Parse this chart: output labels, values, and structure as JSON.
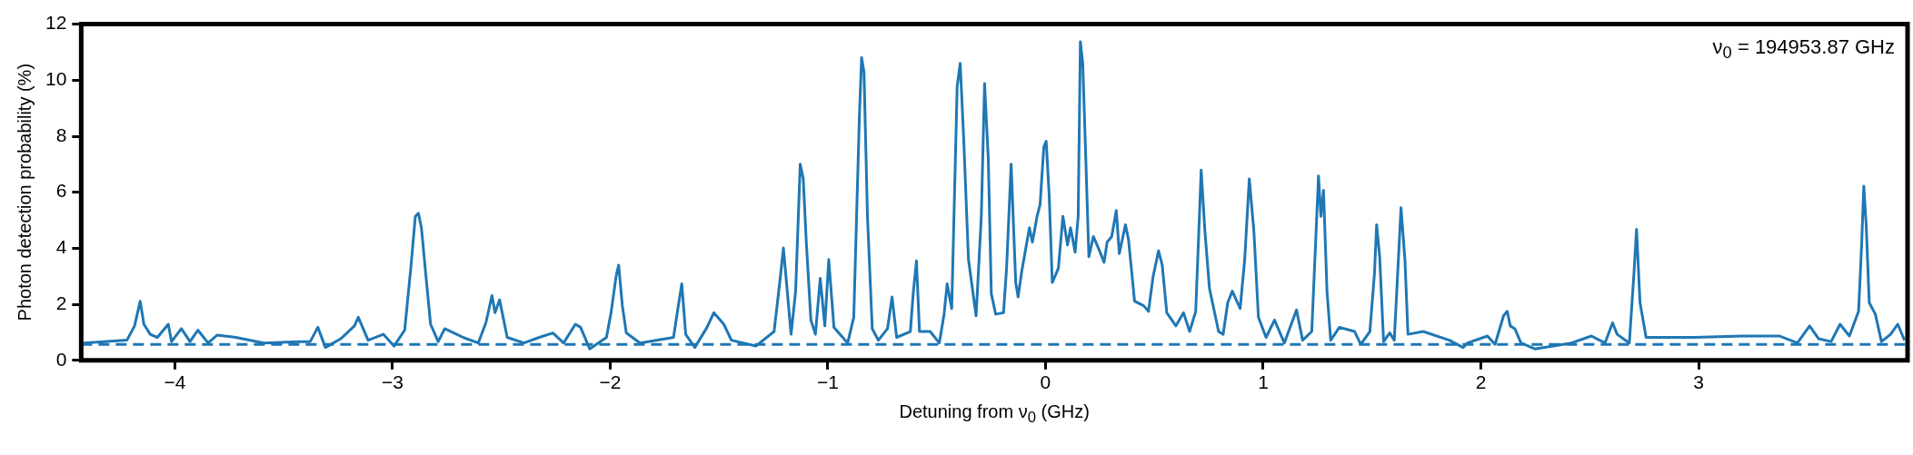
{
  "chart_data": {
    "type": "line",
    "xlabel": "Detuning from ν$_{0}$ (GHz)",
    "ylabel": "Photon detection probability (%)",
    "annotations": [
      "ν$_{0}$ = 194953.87 GHz"
    ],
    "xlim": [
      -4.43,
      3.96
    ],
    "ylim": [
      0,
      12
    ],
    "xticks": [
      {
        "value": -4,
        "label": "−4"
      },
      {
        "value": -3,
        "label": "−3"
      },
      {
        "value": -2,
        "label": "−2"
      },
      {
        "value": -1,
        "label": "−1"
      },
      0,
      1,
      2,
      3
    ],
    "yticks": [
      0,
      2,
      4,
      6,
      8,
      10,
      12
    ],
    "marker": "none",
    "line_style": "solid",
    "legend": false,
    "ref_lines": [
      {
        "axis": "y",
        "value": 0.57,
        "color": "#1f77b4",
        "line_style": "dashed"
      }
    ],
    "series": [
      {
        "color": "#1f77b4",
        "x": [
          -4.42,
          -4.22,
          -4.185,
          -4.159,
          -4.142,
          -4.113,
          -4.08,
          -4.03,
          -4.015,
          -3.97,
          -3.93,
          -3.894,
          -3.847,
          -3.806,
          -3.72,
          -3.59,
          -3.434,
          -3.378,
          -3.343,
          -3.308,
          -3.238,
          -3.175,
          -3.157,
          -3.112,
          -3.042,
          -2.993,
          -2.944,
          -2.916,
          -2.895,
          -2.881,
          -2.867,
          -2.846,
          -2.825,
          -2.79,
          -2.76,
          -2.676,
          -2.606,
          -2.571,
          -2.543,
          -2.529,
          -2.508,
          -2.473,
          -2.396,
          -2.326,
          -2.263,
          -2.214,
          -2.16,
          -2.136,
          -2.094,
          -2.017,
          -1.996,
          -1.972,
          -1.961,
          -1.944,
          -1.926,
          -1.863,
          -1.709,
          -1.688,
          -1.671,
          -1.653,
          -1.611,
          -1.555,
          -1.524,
          -1.478,
          -1.443,
          -1.331,
          -1.247,
          -1.221,
          -1.204,
          -1.169,
          -1.148,
          -1.127,
          -1.113,
          -1.099,
          -1.078,
          -1.057,
          -1.035,
          -1.014,
          -0.996,
          -0.972,
          -0.909,
          -0.881,
          -0.855,
          -0.845,
          -0.834,
          -0.818,
          -0.796,
          -0.768,
          -0.726,
          -0.705,
          -0.684,
          -0.621,
          -0.607,
          -0.593,
          -0.579,
          -0.53,
          -0.488,
          -0.466,
          -0.452,
          -0.431,
          -0.406,
          -0.392,
          -0.376,
          -0.354,
          -0.319,
          -0.295,
          -0.28,
          -0.263,
          -0.249,
          -0.229,
          -0.193,
          -0.179,
          -0.158,
          -0.137,
          -0.126,
          -0.109,
          -0.088,
          -0.074,
          -0.06,
          -0.039,
          -0.025,
          -0.008,
          0.003,
          0.017,
          0.031,
          0.059,
          0.08,
          0.101,
          0.115,
          0.136,
          0.15,
          0.16,
          0.171,
          0.185,
          0.199,
          0.22,
          0.248,
          0.269,
          0.283,
          0.304,
          0.325,
          0.339,
          0.367,
          0.381,
          0.402,
          0.409,
          0.451,
          0.473,
          0.494,
          0.519,
          0.536,
          0.557,
          0.599,
          0.634,
          0.662,
          0.69,
          0.715,
          0.732,
          0.753,
          0.795,
          0.816,
          0.837,
          0.858,
          0.894,
          0.915,
          0.936,
          0.957,
          0.978,
          1.013,
          1.052,
          1.097,
          1.153,
          1.181,
          1.223,
          1.254,
          1.265,
          1.277,
          1.293,
          1.31,
          1.35,
          1.42,
          1.448,
          1.49,
          1.511,
          1.521,
          1.535,
          1.553,
          1.581,
          1.602,
          1.623,
          1.633,
          1.651,
          1.665,
          1.735,
          1.855,
          1.918,
          1.939,
          2.03,
          2.065,
          2.104,
          2.121,
          2.135,
          2.156,
          2.184,
          2.248,
          2.416,
          2.508,
          2.57,
          2.605,
          2.626,
          2.682,
          2.703,
          2.715,
          2.731,
          2.759,
          2.977,
          3.202,
          3.37,
          3.454,
          3.51,
          3.552,
          3.609,
          3.65,
          3.693,
          3.735,
          3.749,
          3.759,
          3.77,
          3.784,
          3.812,
          3.84,
          3.882,
          3.915,
          3.946
        ],
        "values": [
          0.62,
          0.72,
          1.23,
          2.11,
          1.29,
          0.93,
          0.82,
          1.29,
          0.67,
          1.13,
          0.67,
          1.08,
          0.62,
          0.9,
          0.82,
          0.62,
          0.67,
          0.67,
          1.18,
          0.46,
          0.77,
          1.23,
          1.54,
          0.72,
          0.93,
          0.51,
          1.08,
          3.29,
          5.14,
          5.25,
          4.73,
          2.98,
          1.29,
          0.67,
          1.13,
          0.82,
          0.62,
          1.34,
          2.31,
          1.7,
          2.16,
          0.82,
          0.62,
          0.82,
          0.98,
          0.62,
          1.29,
          1.18,
          0.41,
          0.82,
          1.7,
          3.03,
          3.4,
          1.95,
          0.98,
          0.62,
          0.82,
          1.9,
          2.73,
          0.93,
          0.46,
          1.18,
          1.7,
          1.29,
          0.72,
          0.51,
          1.03,
          2.78,
          4.01,
          0.93,
          2.47,
          7.0,
          6.48,
          4.22,
          1.44,
          0.93,
          2.93,
          1.23,
          3.6,
          1.18,
          0.62,
          1.54,
          8.74,
          10.8,
          10.29,
          5.14,
          1.13,
          0.72,
          1.13,
          2.26,
          0.82,
          1.03,
          2.47,
          3.55,
          1.03,
          1.03,
          0.62,
          1.65,
          2.73,
          1.85,
          9.77,
          10.6,
          7.92,
          3.6,
          1.59,
          5.14,
          9.88,
          7.2,
          2.37,
          1.65,
          1.7,
          3.29,
          7.0,
          2.78,
          2.26,
          3.19,
          4.12,
          4.73,
          4.22,
          5.14,
          5.56,
          7.61,
          7.82,
          5.86,
          2.78,
          3.29,
          5.14,
          4.12,
          4.73,
          3.86,
          5.14,
          11.37,
          10.6,
          7.2,
          3.7,
          4.42,
          3.91,
          3.5,
          4.22,
          4.42,
          5.35,
          3.81,
          4.84,
          4.32,
          2.67,
          2.11,
          1.95,
          1.75,
          2.98,
          3.91,
          3.4,
          1.7,
          1.23,
          1.7,
          1.03,
          1.75,
          6.79,
          4.63,
          2.57,
          1.03,
          0.93,
          2.06,
          2.47,
          1.85,
          3.6,
          6.48,
          4.63,
          1.54,
          0.82,
          1.44,
          0.62,
          1.8,
          0.72,
          1.03,
          6.58,
          5.14,
          6.07,
          2.47,
          0.72,
          1.18,
          1.03,
          0.57,
          1.03,
          3.09,
          4.84,
          3.7,
          0.67,
          0.98,
          0.72,
          3.91,
          5.45,
          3.6,
          0.93,
          1.03,
          0.72,
          0.46,
          0.62,
          0.87,
          0.57,
          1.59,
          1.75,
          1.23,
          1.13,
          0.62,
          0.41,
          0.62,
          0.87,
          0.62,
          1.34,
          0.93,
          0.62,
          3.09,
          4.68,
          2.06,
          0.82,
          0.82,
          0.87,
          0.87,
          0.62,
          1.23,
          0.77,
          0.67,
          1.29,
          0.87,
          1.75,
          4.12,
          6.22,
          4.84,
          2.06,
          1.65,
          0.67,
          0.93,
          1.29,
          0.72
        ]
      }
    ]
  }
}
